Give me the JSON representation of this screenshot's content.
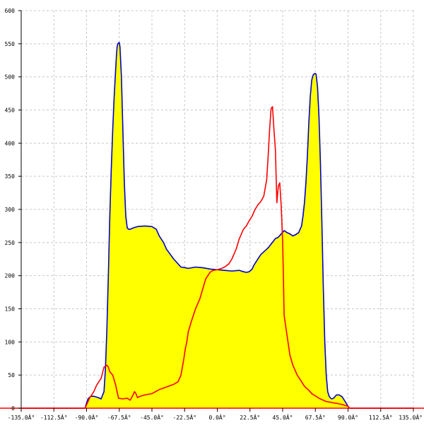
{
  "chart_data": {
    "type": "area",
    "title": "",
    "xlabel": "",
    "ylabel": "",
    "xlim": [
      -135,
      135
    ],
    "ylim": [
      0,
      600
    ],
    "grid": true,
    "legend": "none",
    "x_ticks": [
      -135,
      -112.5,
      -90,
      -67.5,
      -45,
      -22.5,
      0,
      22.5,
      45,
      67.5,
      90,
      112.5,
      135
    ],
    "x_tick_labels": [
      "-135.0Â°",
      "-112.5Â°",
      "-90.0Â°",
      "-67.5Â°",
      "-45.0Â°",
      "-22.5Â°",
      "0.0Â°",
      "22.5Â°",
      "45.0Â°",
      "67.5Â°",
      "90.0Â°",
      "112.5Â°",
      "135.0Â°"
    ],
    "y_ticks": [
      0,
      50,
      100,
      150,
      200,
      250,
      300,
      350,
      400,
      450,
      500,
      550,
      600
    ],
    "y_tick_labels": [
      "0",
      "50",
      "100",
      "150",
      "200",
      "250",
      "300",
      "350",
      "400",
      "450",
      "500",
      "550",
      "600"
    ],
    "fill_color": "#ffff00",
    "series": [
      {
        "color": "#0000cc",
        "filled": true,
        "x": [
          -135,
          -91,
          -90,
          -89,
          -87,
          -85,
          -82,
          -80,
          -78,
          -77,
          -76,
          -75,
          -74,
          -73,
          -72,
          -71,
          -70,
          -69.5,
          -69,
          -68.5,
          -68,
          -67.5,
          -67,
          -66,
          -65,
          -64,
          -63,
          -62,
          -61,
          -60,
          -58,
          -55,
          -50,
          -45,
          -42,
          -40,
          -37,
          -35,
          -30,
          -25,
          -22,
          -20,
          -15,
          -10,
          -5,
          0,
          5,
          10,
          15,
          18,
          20,
          22,
          24,
          25,
          27,
          30,
          35,
          40,
          42,
          44,
          46,
          48,
          50,
          52,
          54,
          56,
          58,
          59,
          60,
          61,
          62,
          63,
          64,
          65,
          66,
          67,
          67.5,
          68,
          69,
          70,
          71,
          72,
          73,
          74,
          75,
          76,
          77,
          78,
          79,
          80,
          82,
          84,
          86,
          88,
          90,
          91,
          135
        ],
        "y": [
          0,
          0,
          8,
          14,
          18,
          18,
          16,
          14,
          25,
          60,
          120,
          200,
          290,
          360,
          420,
          470,
          510,
          530,
          545,
          550,
          551,
          552,
          545,
          500,
          420,
          340,
          290,
          272,
          270,
          270,
          272,
          274,
          275,
          274,
          270,
          260,
          250,
          240,
          225,
          213,
          212,
          211,
          213,
          212,
          210,
          209,
          208,
          207,
          208,
          206,
          205,
          206,
          210,
          215,
          222,
          232,
          242,
          256,
          258,
          263,
          268,
          265,
          263,
          260,
          262,
          265,
          275,
          290,
          310,
          340,
          380,
          430,
          470,
          495,
          503,
          505,
          505,
          504,
          485,
          440,
          370,
          280,
          180,
          100,
          50,
          25,
          18,
          15,
          14,
          15,
          20,
          20,
          17,
          10,
          3,
          0,
          0
        ]
      },
      {
        "color": "#ff0000",
        "filled": false,
        "x": [
          -135,
          -91,
          -90,
          -88,
          -85,
          -83,
          -80,
          -78,
          -76,
          -75,
          -74,
          -72,
          -70,
          -68,
          -65,
          -62,
          -60,
          -58,
          -57,
          -56,
          -55,
          -53,
          -50,
          -45,
          -40,
          -35,
          -30,
          -27,
          -25,
          -23,
          -22,
          -21,
          -20,
          -18,
          -15,
          -12,
          -10,
          -8,
          -5,
          -3,
          0,
          3,
          5,
          8,
          10,
          13,
          15,
          18,
          20,
          22,
          24,
          26,
          28,
          30,
          32,
          34,
          35,
          36,
          37,
          38,
          39,
          40,
          41,
          42,
          43,
          44,
          45,
          45.5,
          46,
          47,
          48,
          49,
          50,
          52,
          55,
          58,
          60,
          63,
          65,
          68,
          70,
          73,
          75,
          78,
          80,
          83,
          85,
          87,
          88,
          90,
          91,
          135
        ],
        "y": [
          0,
          0,
          5,
          15,
          25,
          35,
          45,
          62,
          65,
          62,
          55,
          50,
          35,
          15,
          14,
          15,
          12,
          20,
          25,
          22,
          16,
          18,
          20,
          22,
          28,
          32,
          36,
          40,
          50,
          75,
          90,
          100,
          115,
          130,
          150,
          165,
          180,
          195,
          205,
          208,
          209,
          211,
          213,
          218,
          225,
          240,
          255,
          270,
          275,
          283,
          290,
          300,
          307,
          312,
          320,
          345,
          380,
          420,
          452,
          455,
          420,
          390,
          310,
          335,
          340,
          305,
          250,
          200,
          140,
          125,
          110,
          95,
          80,
          65,
          50,
          40,
          33,
          27,
          22,
          18,
          15,
          12,
          10,
          9,
          8,
          7,
          6,
          5,
          4,
          3,
          0,
          0
        ]
      }
    ]
  }
}
